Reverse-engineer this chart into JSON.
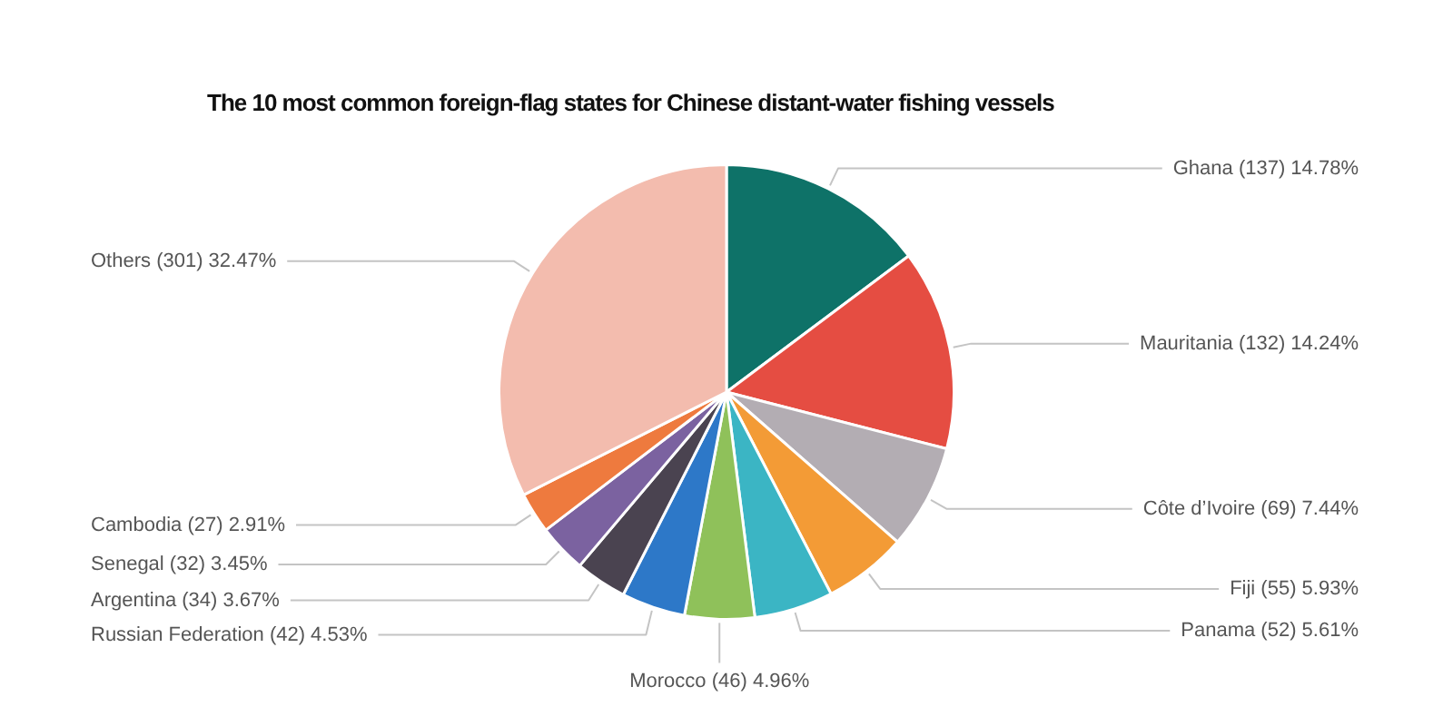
{
  "chart_data": {
    "type": "pie",
    "title": "The 10 most common foreign-flag states for Chinese distant-water fishing vessels",
    "categories": [
      "Ghana",
      "Mauritania",
      "Côte d’Ivoire",
      "Fiji",
      "Panama",
      "Morocco",
      "Russian Federation",
      "Argentina",
      "Senegal",
      "Cambodia",
      "Others"
    ],
    "values": [
      137,
      132,
      69,
      55,
      52,
      46,
      42,
      34,
      32,
      27,
      301
    ],
    "colors": [
      "#0e7268",
      "#e54d42",
      "#b3adb3",
      "#f39b36",
      "#3bb5c4",
      "#8fc15a",
      "#2d78c8",
      "#4a4350",
      "#7b62a0",
      "#ee7a3e",
      "#f3bcae"
    ],
    "value_labels": [
      "(137) 14.78%",
      "(132) 14.24%",
      "(69) 7.44%",
      "(55) 5.93%",
      "(52) 5.61%",
      "(46) 4.96%",
      "(42) 4.53%",
      "(34) 3.67%",
      "(32) 3.45%",
      "(27) 2.91%",
      "(301) 32.47%"
    ]
  }
}
